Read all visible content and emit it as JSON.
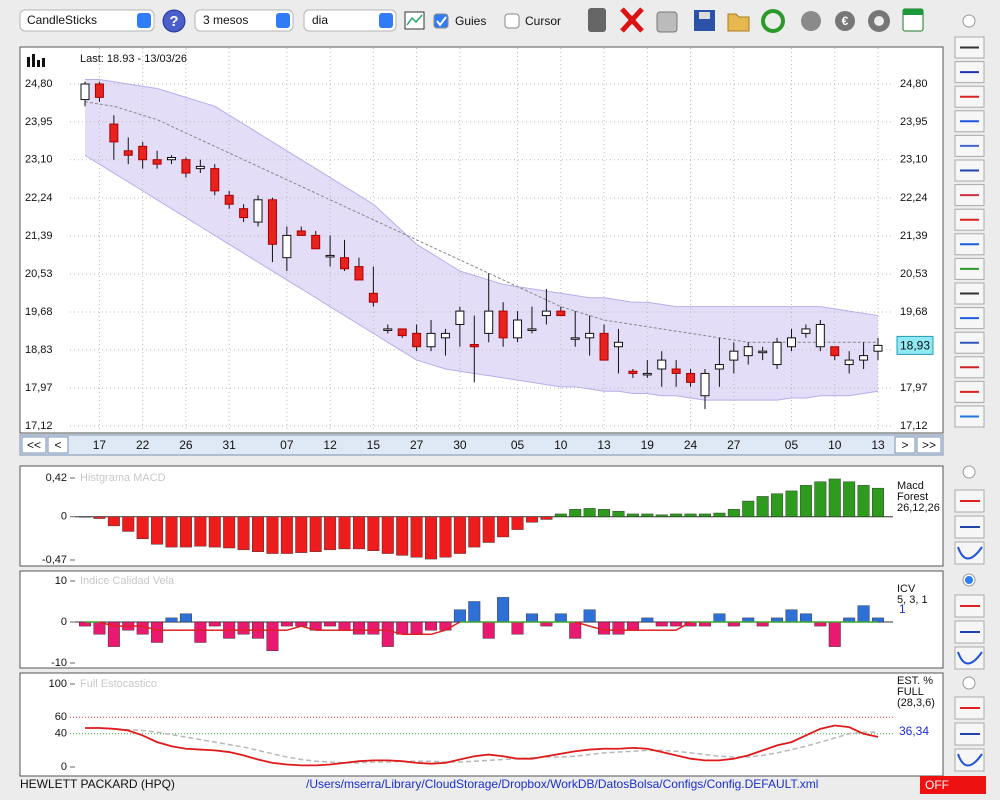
{
  "toolbar": {
    "chart_type": "CandleSticks",
    "period": "3 mesos",
    "interval": "dia",
    "guides": {
      "label": "Guies",
      "checked": true
    },
    "cursor": {
      "label": "Cursor",
      "checked": false
    }
  },
  "navigation": {
    "first": "<<",
    "prev": "<",
    "next": ">",
    "last": ">>"
  },
  "status": {
    "symbol": "HEWLETT PACKARD (HPQ)",
    "path": "/Users/mserra/Library/CloudStorage/Dropbox/WorkDB/DatosBolsa/Configs/Config.DEFAULT.xml",
    "mode": "OFF"
  },
  "chart_data": [
    {
      "type": "candlestick",
      "title": "Last: 18.93 - 13/03/26",
      "categories": [
        null,
        "17",
        null,
        null,
        "22",
        null,
        null,
        "26",
        null,
        null,
        "31",
        null,
        null,
        null,
        "07",
        null,
        null,
        "12",
        null,
        null,
        "15",
        null,
        null,
        "27",
        null,
        null,
        "30",
        null,
        null,
        null,
        "05",
        null,
        null,
        "10",
        null,
        null,
        "13",
        null,
        null,
        "19",
        null,
        null,
        "24",
        null,
        null,
        "27",
        null,
        null,
        null,
        "05",
        null,
        null,
        "10",
        null,
        null,
        "13"
      ],
      "ohlc": [
        [
          24.45,
          24.85,
          24.3,
          24.8
        ],
        [
          24.8,
          24.85,
          24.4,
          24.5
        ],
        [
          23.9,
          24.1,
          23.1,
          23.5
        ],
        [
          23.3,
          23.6,
          23.0,
          23.2
        ],
        [
          23.4,
          23.5,
          22.9,
          23.1
        ],
        [
          23.1,
          23.3,
          22.9,
          23.0
        ],
        [
          23.1,
          23.2,
          23.0,
          23.15
        ],
        [
          23.1,
          23.15,
          22.7,
          22.8
        ],
        [
          22.9,
          23.1,
          22.8,
          22.95
        ],
        [
          22.9,
          23.0,
          22.3,
          22.4
        ],
        [
          22.3,
          22.4,
          22.0,
          22.1
        ],
        [
          22.0,
          22.1,
          21.7,
          21.8
        ],
        [
          21.7,
          22.3,
          21.6,
          22.2
        ],
        [
          22.2,
          22.25,
          20.8,
          21.2
        ],
        [
          20.9,
          21.6,
          20.6,
          21.4
        ],
        [
          21.5,
          21.6,
          21.4,
          21.4
        ],
        [
          21.4,
          21.5,
          21.1,
          21.1
        ],
        [
          20.95,
          21.4,
          20.7,
          20.95
        ],
        [
          20.9,
          21.3,
          20.6,
          20.65
        ],
        [
          20.7,
          20.9,
          20.4,
          20.4
        ],
        [
          20.1,
          20.7,
          19.8,
          19.9
        ],
        [
          19.3,
          19.4,
          19.2,
          19.3
        ],
        [
          19.3,
          19.3,
          19.1,
          19.15
        ],
        [
          19.2,
          19.4,
          18.8,
          18.9
        ],
        [
          18.9,
          19.5,
          18.8,
          19.2
        ],
        [
          19.1,
          19.3,
          18.7,
          19.2
        ],
        [
          19.4,
          19.8,
          18.9,
          19.7
        ],
        [
          18.95,
          19.6,
          18.1,
          18.9
        ],
        [
          19.2,
          20.55,
          19.0,
          19.7
        ],
        [
          19.7,
          19.9,
          18.9,
          19.1
        ],
        [
          19.1,
          19.7,
          19.0,
          19.5
        ],
        [
          19.3,
          19.8,
          19.2,
          19.3
        ],
        [
          19.6,
          20.2,
          19.4,
          19.7
        ],
        [
          19.7,
          19.8,
          19.6,
          19.6
        ],
        [
          19.1,
          19.7,
          18.9,
          19.1
        ],
        [
          19.1,
          19.6,
          18.7,
          19.2
        ],
        [
          19.2,
          19.4,
          18.6,
          18.6
        ],
        [
          18.9,
          19.3,
          18.3,
          19.0
        ],
        [
          18.35,
          18.4,
          18.2,
          18.3
        ],
        [
          18.3,
          18.6,
          18.2,
          18.3
        ],
        [
          18.4,
          18.8,
          18.0,
          18.6
        ],
        [
          18.4,
          18.6,
          18.0,
          18.3
        ],
        [
          18.3,
          18.4,
          18.0,
          18.1
        ],
        [
          17.8,
          18.4,
          17.5,
          18.3
        ],
        [
          18.4,
          19.1,
          18.0,
          18.5
        ],
        [
          18.6,
          19.0,
          18.3,
          18.8
        ],
        [
          18.7,
          19.0,
          18.5,
          18.9
        ],
        [
          18.8,
          18.9,
          18.6,
          18.8
        ],
        [
          18.5,
          19.1,
          18.4,
          19.0
        ],
        [
          18.9,
          19.3,
          18.8,
          19.1
        ],
        [
          19.2,
          19.4,
          19.1,
          19.3
        ],
        [
          18.9,
          19.5,
          18.8,
          19.4
        ],
        [
          18.9,
          18.9,
          18.6,
          18.7
        ],
        [
          18.5,
          18.8,
          18.3,
          18.6
        ],
        [
          18.6,
          19.0,
          18.4,
          18.7
        ],
        [
          18.8,
          19.1,
          18.6,
          18.93
        ]
      ],
      "upper": [
        24.9,
        24.9,
        24.85,
        24.8,
        24.75,
        24.7,
        24.6,
        24.5,
        24.4,
        24.3,
        24.1,
        23.9,
        23.7,
        23.5,
        23.3,
        23.1,
        22.9,
        22.7,
        22.5,
        22.3,
        22.1,
        21.8,
        21.5,
        21.2,
        21.0,
        20.8,
        20.6,
        20.5,
        20.4,
        20.3,
        20.25,
        20.2,
        20.15,
        20.1,
        20.05,
        20.0,
        20.0,
        19.95,
        19.9,
        19.9,
        19.85,
        19.8,
        19.8,
        19.8,
        19.8,
        19.8,
        19.8,
        19.8,
        19.8,
        19.8,
        19.8,
        19.8,
        19.75,
        19.7,
        19.65,
        19.6
      ],
      "lower": [
        23.2,
        23.0,
        22.8,
        22.6,
        22.4,
        22.2,
        22.0,
        21.8,
        21.6,
        21.4,
        21.2,
        21.0,
        20.8,
        20.6,
        20.4,
        20.2,
        20.0,
        19.8,
        19.6,
        19.4,
        19.2,
        19.0,
        18.8,
        18.6,
        18.5,
        18.4,
        18.35,
        18.3,
        18.25,
        18.2,
        18.15,
        18.1,
        18.05,
        18.0,
        18.0,
        17.95,
        17.9,
        17.9,
        17.85,
        17.85,
        17.8,
        17.8,
        17.75,
        17.7,
        17.7,
        17.7,
        17.7,
        17.7,
        17.7,
        17.75,
        17.75,
        17.8,
        17.8,
        17.8,
        17.85,
        17.9
      ],
      "ma": [
        24.4,
        24.35,
        24.3,
        24.2,
        24.1,
        24.0,
        23.85,
        23.7,
        23.55,
        23.4,
        23.25,
        23.1,
        22.95,
        22.8,
        22.65,
        22.5,
        22.35,
        22.2,
        22.05,
        21.9,
        21.75,
        21.6,
        21.45,
        21.3,
        21.15,
        21.0,
        20.85,
        20.7,
        20.55,
        20.4,
        20.25,
        20.1,
        19.95,
        19.8,
        19.7,
        19.6,
        19.5,
        19.45,
        19.4,
        19.35,
        19.3,
        19.25,
        19.2,
        19.15,
        19.1,
        19.05,
        19.0,
        19.0,
        19.0,
        19.0,
        19.0,
        19.0,
        19.0,
        19.0,
        19.0,
        19.0
      ],
      "last_label": "18,93",
      "ylim": [
        17.12,
        24.8
      ],
      "yticks": [
        {
          "value": 24.8,
          "label": "24,80"
        },
        {
          "value": 23.95,
          "label": "23,95"
        },
        {
          "value": 23.1,
          "label": "23,10"
        },
        {
          "value": 22.24,
          "label": "22,24"
        },
        {
          "value": 21.39,
          "label": "21,39"
        },
        {
          "value": 20.53,
          "label": "20,53"
        },
        {
          "value": 19.68,
          "label": "19,68"
        },
        {
          "value": 18.83,
          "label": "18,83"
        },
        {
          "value": 17.97,
          "label": "17,97"
        },
        {
          "value": 17.12,
          "label": "17,12"
        }
      ],
      "grid": true,
      "up_color": "#ffffff",
      "down_color": "#e8231f",
      "band_color": "#d9d2f5"
    },
    {
      "type": "bar",
      "title": "Histgrama MACD",
      "legend": [
        "Macd",
        "Forest",
        "26,12,26"
      ],
      "values": [
        0,
        -0.02,
        -0.1,
        -0.16,
        -0.24,
        -0.3,
        -0.33,
        -0.33,
        -0.32,
        -0.33,
        -0.34,
        -0.36,
        -0.38,
        -0.4,
        -0.4,
        -0.39,
        -0.38,
        -0.36,
        -0.35,
        -0.35,
        -0.37,
        -0.4,
        -0.42,
        -0.44,
        -0.46,
        -0.44,
        -0.4,
        -0.33,
        -0.28,
        -0.22,
        -0.14,
        -0.06,
        -0.03,
        0.03,
        0.08,
        0.09,
        0.08,
        0.06,
        0.03,
        0.03,
        0.02,
        0.03,
        0.03,
        0.03,
        0.04,
        0.08,
        0.17,
        0.22,
        0.25,
        0.28,
        0.34,
        0.38,
        0.41,
        0.38,
        0.34,
        0.31
      ],
      "ylim": [
        -0.47,
        0.42
      ],
      "yticks": [
        {
          "value": 0.42,
          "label": "0,42"
        },
        0,
        {
          "value": -0.47,
          "label": "-0,47"
        }
      ],
      "pos_color": "#2e9a1e",
      "neg_color": "#ee1c1c"
    },
    {
      "type": "bar",
      "title": "Indice Calidad Vela",
      "legend": [
        "ICV",
        "5, 3, 1"
      ],
      "values": [
        -1,
        -3,
        -6,
        -2,
        -3,
        -5,
        1,
        2,
        -5,
        -1,
        -4,
        -3,
        -4,
        -7,
        -1,
        -1,
        -2,
        -1,
        -2,
        -3,
        -3,
        -6,
        -3,
        -3,
        -2,
        -2,
        3,
        5,
        -4,
        6,
        -3,
        2,
        -1,
        2,
        -4,
        3,
        -3,
        -3,
        -2,
        1,
        -1,
        -1,
        -1,
        -1,
        2,
        -1,
        1,
        -1,
        1,
        3,
        2,
        -1,
        -6,
        1,
        4,
        1
      ],
      "line": [
        0,
        0,
        -1,
        -1,
        -1,
        -2,
        -2,
        -2,
        -2,
        -2,
        -2,
        -2,
        -2,
        -2,
        -2,
        -1,
        -2,
        -2,
        -2,
        -2,
        -2,
        -2,
        -3,
        -3,
        -3,
        -2,
        0,
        0,
        0,
        0,
        0,
        0,
        0,
        0,
        0,
        -1,
        -2,
        -2,
        -2,
        -2,
        -2,
        -2,
        0,
        0,
        0,
        0,
        0,
        0,
        0,
        0,
        0,
        0,
        0,
        0,
        0,
        0
      ],
      "ylim": [
        -10,
        10
      ],
      "yticks": [
        10,
        0,
        -10
      ],
      "pos_color": "#2f6fd8",
      "neg_color": "#e8196e",
      "line_pos_color": "#3aa82a",
      "line_neg_color": "#e02020"
    },
    {
      "type": "line",
      "title": "Full Estocastico",
      "legend": [
        "EST. %",
        "FULL",
        "(28,3,6)"
      ],
      "k": [
        47,
        47,
        46,
        44,
        38,
        30,
        25,
        22,
        21,
        20,
        18,
        14,
        9,
        5,
        3,
        2,
        2,
        3,
        5,
        7,
        8,
        8,
        7,
        5,
        4,
        5,
        9,
        13,
        15,
        13,
        10,
        10,
        13,
        16,
        19,
        21,
        22,
        22,
        23,
        22,
        18,
        14,
        10,
        8,
        8,
        10,
        14,
        20,
        26,
        30,
        38,
        46,
        50,
        48,
        40,
        36.34
      ],
      "d": [
        47,
        47,
        46,
        45,
        44,
        42,
        39,
        36,
        33,
        30,
        27,
        24,
        20,
        16,
        12,
        9,
        7,
        6,
        5,
        5,
        6,
        6,
        7,
        7,
        7,
        6,
        6,
        7,
        8,
        9,
        10,
        11,
        12,
        12,
        13,
        15,
        17,
        18,
        19,
        20,
        20,
        19,
        17,
        15,
        13,
        12,
        12,
        14,
        17,
        21,
        25,
        30,
        35,
        40,
        42,
        42
      ],
      "last_label": "36,34",
      "ylim": [
        0,
        100
      ],
      "yticks": [
        0,
        40,
        60,
        100
      ],
      "k_color": "#e01a1a",
      "d_color": "#b8b8b8"
    }
  ]
}
